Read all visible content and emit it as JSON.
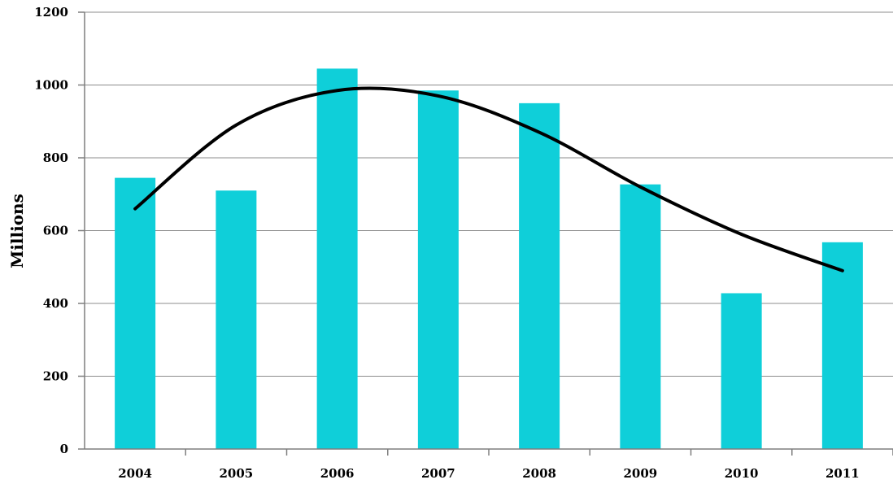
{
  "chart_data": {
    "type": "bar",
    "title": "",
    "xlabel": "",
    "ylabel": "Millions",
    "categories": [
      "2004",
      "2005",
      "2006",
      "2007",
      "2008",
      "2009",
      "2010",
      "2011"
    ],
    "series": [
      {
        "values": [
          745,
          710,
          1045,
          985,
          950,
          727,
          428,
          568
        ],
        "color": "#0fcfd9"
      }
    ],
    "trendline": {
      "type": "polynomial",
      "color": "#000000",
      "values": [
        660,
        890,
        985,
        970,
        870,
        720,
        590,
        490
      ]
    },
    "ylim": [
      0,
      1200
    ],
    "yticks": [
      "0",
      "200",
      "400",
      "600",
      "800",
      "1000",
      "1200"
    ],
    "grid": true,
    "legend": "none"
  }
}
